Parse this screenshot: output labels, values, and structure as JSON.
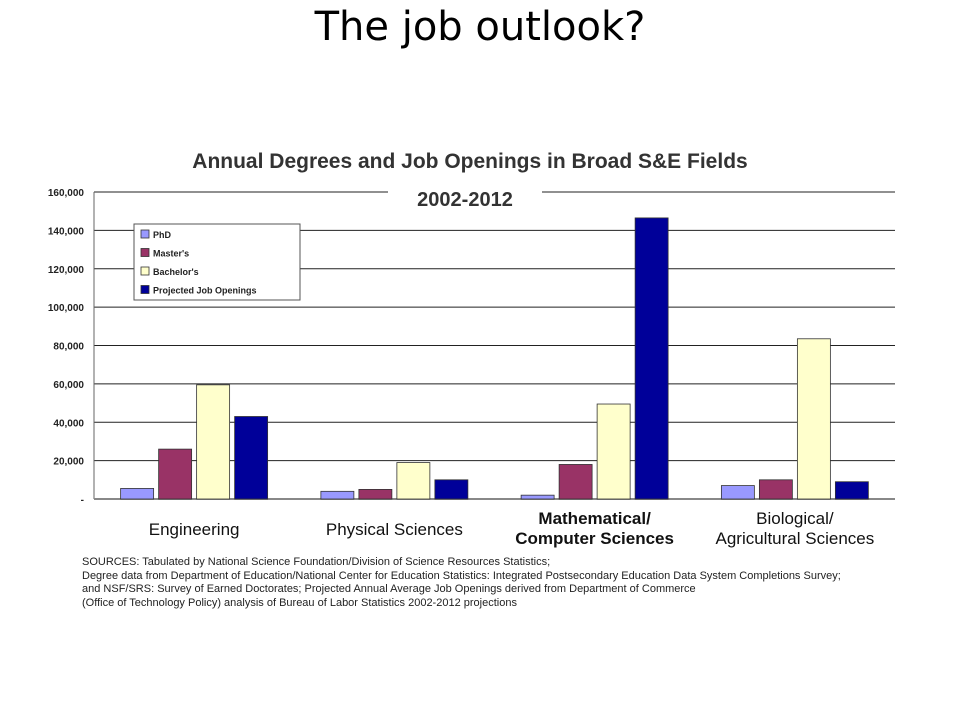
{
  "slide": {
    "title": "The job outlook?"
  },
  "chart_data": {
    "type": "bar",
    "title": "Annual Degrees and Job Openings in Broad S&E Fields",
    "subtitle": "2002-2012",
    "categories": [
      [
        "Engineering"
      ],
      [
        "Physical Sciences"
      ],
      [
        "Mathematical/",
        "Computer Sciences"
      ],
      [
        "Biological/",
        "Agricultural Sciences"
      ]
    ],
    "series": [
      {
        "name": "PhD",
        "color": "#9999ff",
        "values": [
          5500,
          4000,
          2000,
          7000
        ]
      },
      {
        "name": "Master's",
        "color": "#993366",
        "values": [
          26000,
          5000,
          18000,
          10000
        ]
      },
      {
        "name": "Bachelor's",
        "color": "#ffffcc",
        "values": [
          59500,
          19000,
          49500,
          83500
        ]
      },
      {
        "name": "Projected Job Openings",
        "color": "#000099",
        "values": [
          43000,
          10000,
          146500,
          9000
        ]
      }
    ],
    "ylim": [
      0,
      160000
    ],
    "yticks": [
      "-",
      "20,000",
      "40,000",
      "60,000",
      "80,000",
      "100,000",
      "120,000",
      "140,000",
      "160,000"
    ],
    "grid": true,
    "legend": "top-left"
  },
  "sources": [
    "SOURCES: Tabulated by National Science Foundation/Division of Science Resources Statistics;",
    "Degree data from  Department of Education/National Center for Education Statistics: Integrated Postsecondary Education Data System Completions Survey;",
    "and NSF/SRS: Survey of Earned Doctorates; Projected Annual Average Job Openings derived from Department of Commerce",
    "(Office of Technology Policy) analysis of Bureau of Labor Statistics 2002-2012 projections"
  ]
}
